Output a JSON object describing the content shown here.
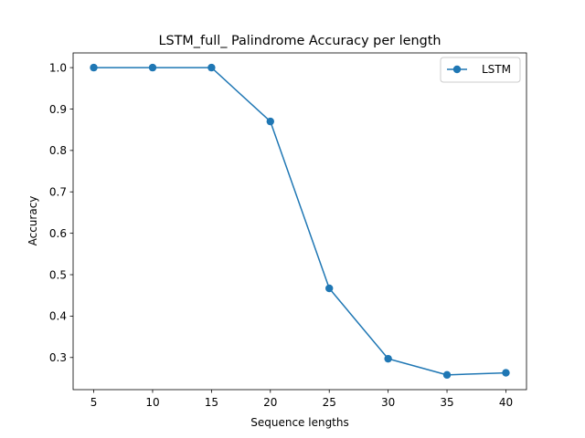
{
  "chart_data": {
    "type": "line",
    "title": "LSTM_full_ Palindrome Accuracy per length",
    "xlabel": "Sequence lengths",
    "ylabel": "Accuracy",
    "x": [
      5,
      10,
      15,
      20,
      25,
      30,
      35,
      40
    ],
    "series": [
      {
        "name": "LSTM",
        "values": [
          1.0,
          1.0,
          1.0,
          0.87,
          0.467,
          0.297,
          0.258,
          0.263
        ],
        "color": "#1f77b4",
        "marker": "circle"
      }
    ],
    "xticks": [
      "5",
      "10",
      "15",
      "20",
      "25",
      "30",
      "35",
      "40"
    ],
    "yticks": [
      "0.3",
      "0.4",
      "0.5",
      "0.6",
      "0.7",
      "0.8",
      "0.9",
      "1.0"
    ],
    "xlim": [
      3.25,
      41.75
    ],
    "ylim": [
      0.2224,
      1.0355
    ],
    "grid": false,
    "legend_position": "top-right"
  }
}
